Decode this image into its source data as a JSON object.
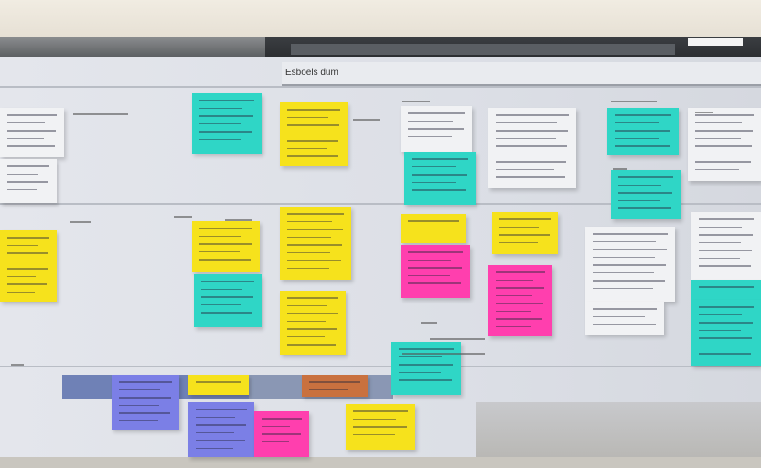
{
  "board": {
    "title": "Esboels dum"
  },
  "note_colors": {
    "cyan": "#2fd6c6",
    "yellow": "#f6e21c",
    "pink": "#ff3fae",
    "white": "#f1f2f4",
    "violet": "#7b7fe6",
    "orange": "#c9713f",
    "band_blue": "#6f81b6"
  }
}
